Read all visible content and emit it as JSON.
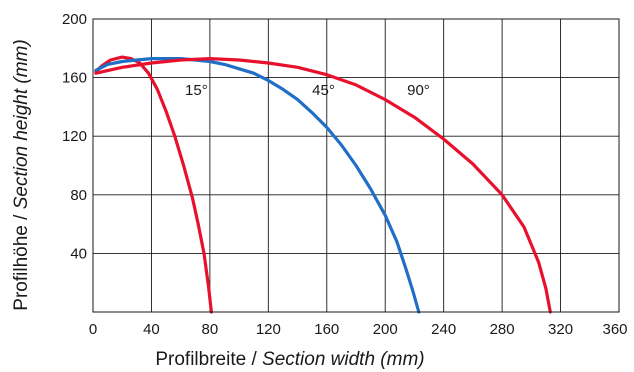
{
  "chart_data": {
    "type": "line",
    "xlabel_plain": "Profilbreite / ",
    "xlabel_italic": "Section width (mm)",
    "ylabel_plain": "Profilhöhe / ",
    "ylabel_italic": "Section height (mm)",
    "xlim": [
      0,
      360
    ],
    "ylim": [
      0,
      200
    ],
    "x_ticks": [
      0,
      40,
      80,
      120,
      160,
      200,
      240,
      280,
      320,
      360
    ],
    "y_ticks": [
      40,
      80,
      120,
      160,
      200
    ],
    "grid": true,
    "series": [
      {
        "name": "15°",
        "color": "#e8112d",
        "points": [
          [
            2,
            164
          ],
          [
            6,
            168
          ],
          [
            12,
            172
          ],
          [
            20,
            174
          ],
          [
            26,
            173
          ],
          [
            32,
            170
          ],
          [
            38,
            163
          ],
          [
            44,
            152
          ],
          [
            50,
            137
          ],
          [
            56,
            120
          ],
          [
            62,
            100
          ],
          [
            68,
            78
          ],
          [
            72,
            60
          ],
          [
            76,
            40
          ],
          [
            79,
            18
          ],
          [
            81,
            0
          ]
        ]
      },
      {
        "name": "45°",
        "color": "#1f6fc6",
        "points": [
          [
            2,
            165
          ],
          [
            10,
            169
          ],
          [
            20,
            171
          ],
          [
            30,
            172
          ],
          [
            40,
            173
          ],
          [
            50,
            173
          ],
          [
            60,
            173
          ],
          [
            70,
            172
          ],
          [
            80,
            171
          ],
          [
            90,
            169
          ],
          [
            100,
            166
          ],
          [
            110,
            163
          ],
          [
            120,
            158
          ],
          [
            130,
            152
          ],
          [
            140,
            145
          ],
          [
            150,
            136
          ],
          [
            160,
            126
          ],
          [
            170,
            114
          ],
          [
            180,
            100
          ],
          [
            190,
            84
          ],
          [
            200,
            66
          ],
          [
            208,
            48
          ],
          [
            214,
            30
          ],
          [
            219,
            14
          ],
          [
            223,
            0
          ]
        ]
      },
      {
        "name": "90°",
        "color": "#e8112d",
        "points": [
          [
            2,
            163
          ],
          [
            20,
            167
          ],
          [
            40,
            170
          ],
          [
            60,
            172
          ],
          [
            80,
            173
          ],
          [
            100,
            172
          ],
          [
            120,
            170
          ],
          [
            140,
            167
          ],
          [
            160,
            162
          ],
          [
            180,
            155
          ],
          [
            200,
            145
          ],
          [
            220,
            133
          ],
          [
            240,
            118
          ],
          [
            260,
            101
          ],
          [
            280,
            80
          ],
          [
            295,
            58
          ],
          [
            305,
            34
          ],
          [
            310,
            16
          ],
          [
            313,
            0
          ]
        ]
      }
    ],
    "annotations": [
      {
        "text": "15°",
        "x": 63,
        "y": 148
      },
      {
        "text": "45°",
        "x": 150,
        "y": 148
      },
      {
        "text": "90°",
        "x": 215,
        "y": 148
      }
    ]
  }
}
